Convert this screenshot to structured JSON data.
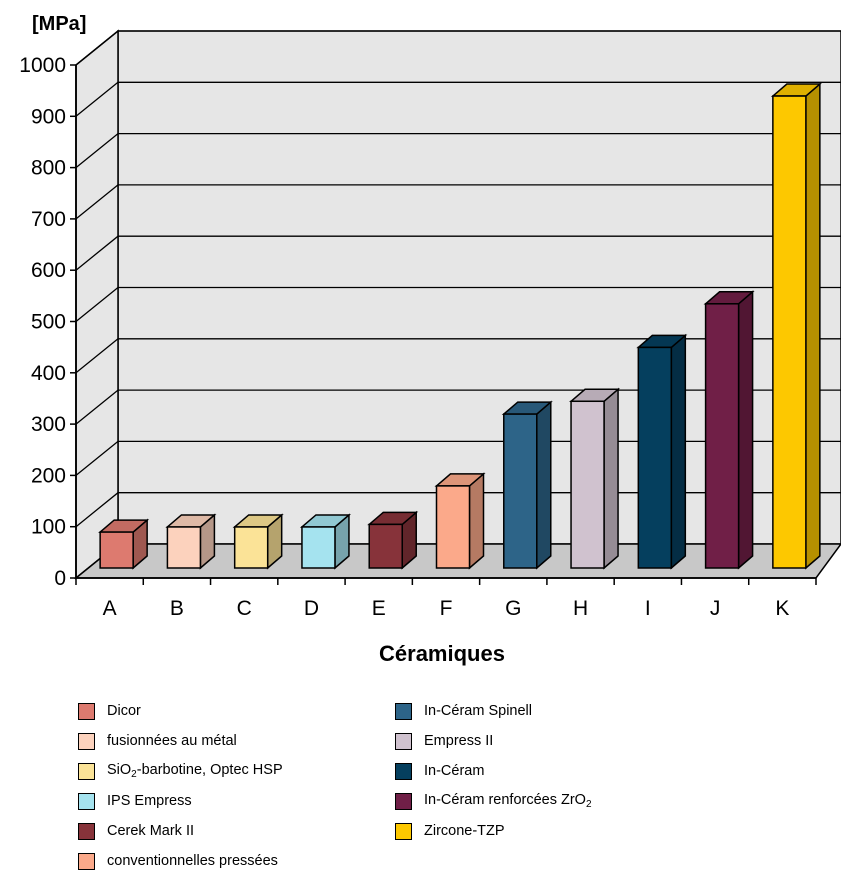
{
  "chart_data": {
    "type": "bar",
    "title": "",
    "ylabel": "[MPa]",
    "xlabel": "Céramiques",
    "ylim": [
      0,
      1000
    ],
    "yticks": [
      0,
      100,
      200,
      300,
      400,
      500,
      600,
      700,
      800,
      900,
      1000
    ],
    "grid": true,
    "categories": [
      "A",
      "B",
      "C",
      "D",
      "E",
      "F",
      "G",
      "H",
      "I",
      "J",
      "K"
    ],
    "values": [
      70,
      80,
      80,
      80,
      85,
      160,
      300,
      325,
      430,
      515,
      920
    ],
    "colors": [
      "#dd7a6f",
      "#fcd2bd",
      "#fbe397",
      "#a5e3ef",
      "#87333a",
      "#fba98a",
      "#2d6488",
      "#d0c2cf",
      "#053f5e",
      "#701f47",
      "#fdc800"
    ],
    "legend": [
      {
        "label": "Dicor",
        "label_sub": "",
        "label_after": ""
      },
      {
        "label": "fusionnées au métal",
        "label_sub": "",
        "label_after": ""
      },
      {
        "label": "SiO",
        "label_sub": "2",
        "label_after": "-barbotine, Optec HSP"
      },
      {
        "label": "IPS Empress",
        "label_sub": "",
        "label_after": ""
      },
      {
        "label": "Cerek Mark II",
        "label_sub": "",
        "label_after": ""
      },
      {
        "label": "conventionnelles pressées",
        "label_sub": "",
        "label_after": ""
      },
      {
        "label": "In-Céram Spinell",
        "label_sub": "",
        "label_after": ""
      },
      {
        "label": "Empress II",
        "label_sub": "",
        "label_after": ""
      },
      {
        "label": "In-Céram",
        "label_sub": "",
        "label_after": ""
      },
      {
        "label": "In-Céram renforcées ZrO",
        "label_sub": "2",
        "label_after": ""
      },
      {
        "label": "Zircone-TZP",
        "label_sub": "",
        "label_after": ""
      }
    ]
  }
}
